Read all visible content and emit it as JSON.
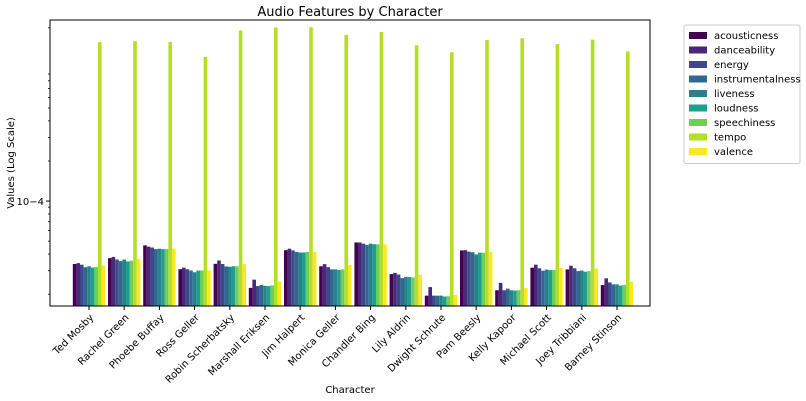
{
  "chart_data": {
    "type": "bar",
    "title": "Audio Features by Character",
    "xlabel": "Character",
    "ylabel": "Values (Log Scale)",
    "y_scale": "log",
    "ylim": [
      1.63e-05,
      0.00229
    ],
    "y_ticks": [
      {
        "value": 0.0001,
        "label": "10−4"
      }
    ],
    "legend_position": "outside-right",
    "categories": [
      "Ted Mosby",
      "Rachel Green",
      "Phoebe Buffay",
      "Ross Geller",
      "Robin Scherbatsky",
      "Marshall Eriksen",
      "Jim Halpert",
      "Monica Geller",
      "Chandler Bing",
      "Lily Aldrin",
      "Dwight Schrute",
      "Pam Beesly",
      "Kelly Kapoor",
      "Michael Scott",
      "Joey Tribbiani",
      "Barney Stinson"
    ],
    "series": [
      {
        "name": "acousticness",
        "color": "#440154",
        "values": [
          3.37e-05,
          3.73e-05,
          4.65e-05,
          3.08e-05,
          3.38e-05,
          2.23e-05,
          4.28e-05,
          3.24e-05,
          4.89e-05,
          2.83e-05,
          1.95e-05,
          4.26e-05,
          2.14e-05,
          3.16e-05,
          3.07e-05,
          2.34e-05
        ]
      },
      {
        "name": "danceability",
        "color": "#482878",
        "values": [
          3.42e-05,
          3.81e-05,
          4.55e-05,
          3.16e-05,
          3.58e-05,
          2.57e-05,
          4.39e-05,
          3.36e-05,
          4.89e-05,
          2.89e-05,
          2.26e-05,
          4.28e-05,
          2.43e-05,
          3.33e-05,
          3.27e-05,
          2.63e-05
        ]
      },
      {
        "name": "energy",
        "color": "#3e4989",
        "values": [
          3.33e-05,
          3.64e-05,
          4.48e-05,
          3.08e-05,
          3.37e-05,
          2.3e-05,
          4.26e-05,
          3.19e-05,
          4.79e-05,
          2.81e-05,
          1.95e-05,
          4.17e-05,
          2.14e-05,
          3.13e-05,
          3.13e-05,
          2.45e-05
        ]
      },
      {
        "name": "instrumentalness",
        "color": "#31688e",
        "values": [
          3.19e-05,
          3.54e-05,
          4.36e-05,
          3.01e-05,
          3.23e-05,
          2.35e-05,
          4.15e-05,
          3.07e-05,
          4.69e-05,
          2.64e-05,
          1.95e-05,
          4.13e-05,
          2.2e-05,
          3e-05,
          2.98e-05,
          2.37e-05
        ]
      },
      {
        "name": "liveness",
        "color": "#26828e",
        "values": [
          3.24e-05,
          3.64e-05,
          4.39e-05,
          2.92e-05,
          3.21e-05,
          2.31e-05,
          4.11e-05,
          3.07e-05,
          4.79e-05,
          2.7e-05,
          1.95e-05,
          3.97e-05,
          2.14e-05,
          3.06e-05,
          3.01e-05,
          2.37e-05
        ]
      },
      {
        "name": "loudness",
        "color": "#1f9e89",
        "values": [
          3.17e-05,
          3.52e-05,
          4.36e-05,
          3.01e-05,
          3.24e-05,
          2.3e-05,
          4.11e-05,
          3.04e-05,
          4.74e-05,
          2.69e-05,
          1.92e-05,
          4.1e-05,
          2.13e-05,
          3.03e-05,
          2.95e-05,
          2.32e-05
        ]
      },
      {
        "name": "speechiness",
        "color": "#6ece58",
        "values": [
          3.2e-05,
          3.57e-05,
          4.36e-05,
          3.01e-05,
          3.24e-05,
          2.33e-05,
          4.15e-05,
          3.07e-05,
          4.74e-05,
          2.67e-05,
          1.93e-05,
          4.09e-05,
          2.14e-05,
          3.04e-05,
          2.98e-05,
          2.35e-05
        ]
      },
      {
        "name": "tempo",
        "color": "#b5de2b",
        "values": [
          0.00156,
          0.00159,
          0.00157,
          0.00121,
          0.00191,
          0.00201,
          0.00202,
          0.00177,
          0.00186,
          0.00148,
          0.00131,
          0.00162,
          0.00167,
          0.00151,
          0.00163,
          0.00133
        ]
      },
      {
        "name": "valence",
        "color": "#fde725",
        "values": [
          3.29e-05,
          3.68e-05,
          4.4e-05,
          3.02e-05,
          3.36e-05,
          2.49e-05,
          4.15e-05,
          3.31e-05,
          4.74e-05,
          2.8e-05,
          1.97e-05,
          4.15e-05,
          2.22e-05,
          3.15e-05,
          3.12e-05,
          2.48e-05
        ]
      }
    ]
  }
}
